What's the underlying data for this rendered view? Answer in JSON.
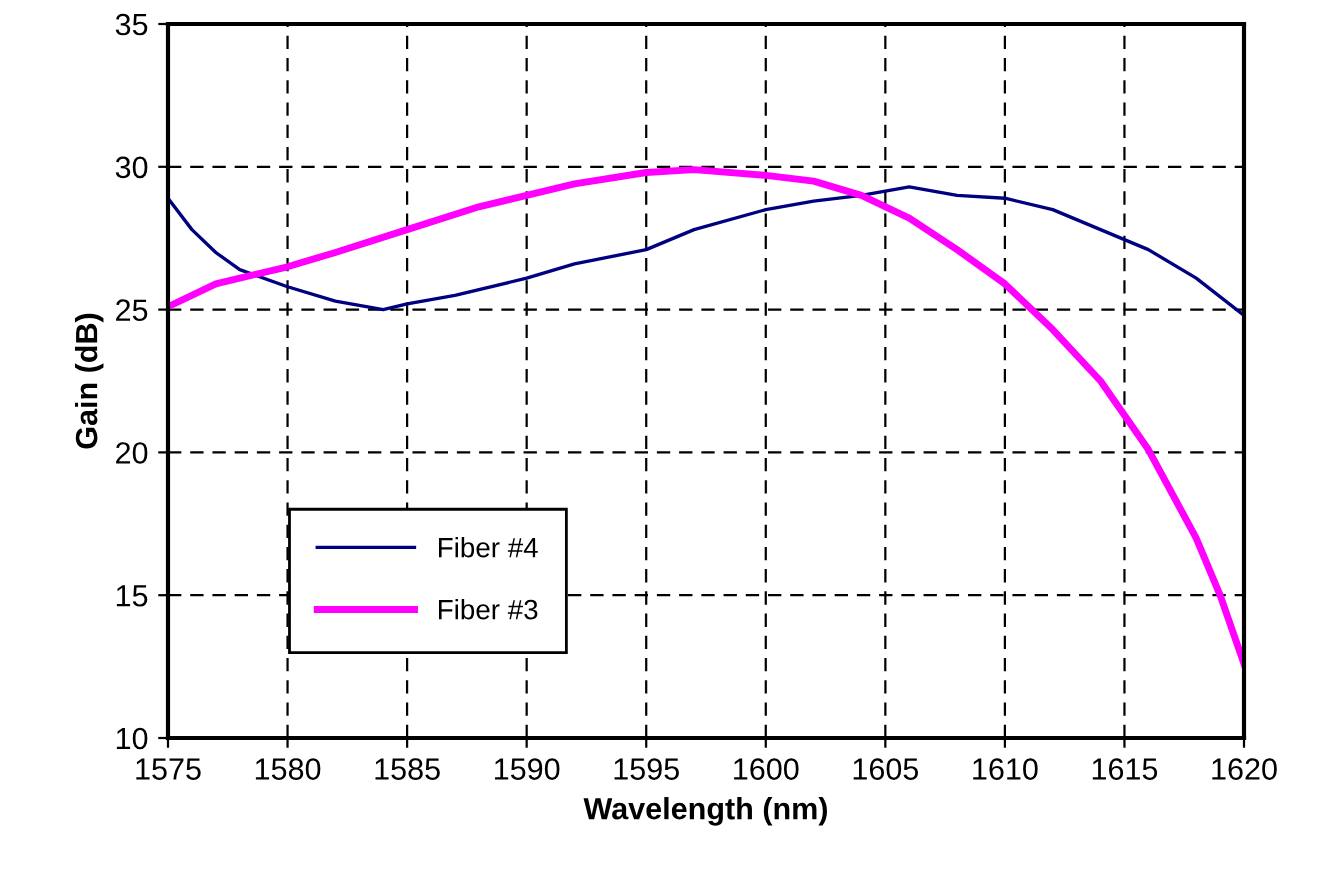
{
  "chart_data": {
    "type": "line",
    "xlabel": "Wavelength (nm)",
    "ylabel": "Gain (dB)",
    "xlim": [
      1575,
      1620
    ],
    "xticks": [
      1575,
      1580,
      1585,
      1590,
      1595,
      1600,
      1605,
      1610,
      1615,
      1620
    ],
    "ylim": [
      10,
      35
    ],
    "yticks": [
      10,
      15,
      20,
      25,
      30,
      35
    ],
    "grid": true,
    "legend": "bottom left",
    "line_style": "solid",
    "marker": "none",
    "series": [
      {
        "name": "Fiber #4",
        "color": "#000080",
        "x": [
          1575,
          1576,
          1577,
          1578,
          1580,
          1582,
          1584,
          1585,
          1587,
          1590,
          1592,
          1595,
          1597,
          1600,
          1602,
          1604,
          1606,
          1608,
          1610,
          1612,
          1614,
          1616,
          1618,
          1620
        ],
        "values": [
          28.9,
          27.8,
          27.0,
          26.4,
          25.8,
          25.3,
          25.0,
          25.2,
          25.5,
          26.1,
          26.6,
          27.1,
          27.8,
          28.5,
          28.8,
          29.0,
          29.3,
          29.0,
          28.9,
          28.5,
          27.8,
          27.1,
          26.1,
          24.8
        ]
      },
      {
        "name": "Fiber #3",
        "color": "#ff00ff",
        "x": [
          1575,
          1577,
          1580,
          1582,
          1585,
          1588,
          1590,
          1592,
          1595,
          1597,
          1600,
          1602,
          1604,
          1606,
          1608,
          1610,
          1612,
          1614,
          1616,
          1618,
          1619,
          1620
        ],
        "values": [
          25.1,
          25.9,
          26.5,
          27.0,
          27.8,
          28.6,
          29.0,
          29.4,
          29.8,
          29.9,
          29.7,
          29.5,
          29.0,
          28.2,
          27.1,
          25.9,
          24.3,
          22.5,
          20.1,
          17.0,
          15.0,
          12.6
        ]
      }
    ]
  }
}
